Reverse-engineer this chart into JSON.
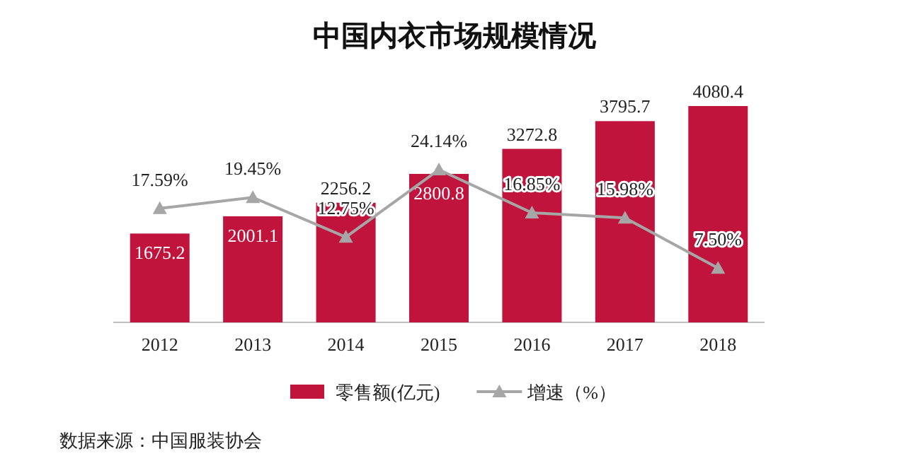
{
  "chart_data": {
    "type": "bar",
    "title": "中国内衣市场规模情况",
    "categories": [
      "2012",
      "2013",
      "2014",
      "2015",
      "2016",
      "2017",
      "2018"
    ],
    "series": [
      {
        "name": "零售额(亿元)",
        "color": "#c0143c",
        "values": [
          1675.2,
          2001.1,
          2256.2,
          2800.8,
          3272.8,
          3795.7,
          4080.4
        ],
        "value_labels": [
          "1675.2",
          "2001.1",
          "2256.2",
          "2800.8",
          "3272.8",
          "3795.7",
          "4080.4"
        ]
      },
      {
        "name": "增速（%）",
        "type": "line",
        "axis": "y2",
        "color": "#a6a6a6",
        "marker": "triangle",
        "values": [
          17.59,
          19.45,
          12.75,
          24.14,
          16.85,
          15.98,
          7.5
        ],
        "value_labels": [
          "17.59%",
          "19.45%",
          "12.75%",
          "24.14%",
          "16.85%",
          "15.98%",
          "7.50%"
        ]
      }
    ],
    "legend": "bottom",
    "annotations": [
      "数据来源：中国服装协会"
    ]
  }
}
